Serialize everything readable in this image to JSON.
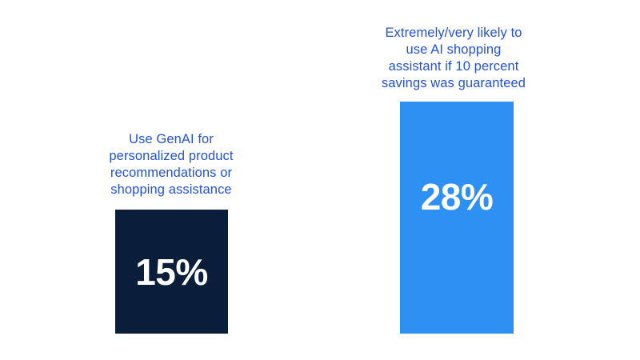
{
  "chart_data": {
    "type": "bar",
    "title": "",
    "xlabel": "",
    "ylabel": "",
    "categories": [
      "Use GenAI for personalized product recommendations or shopping assistance",
      "Extremely/very likely to use AI shopping assistant if 10 percent savings was guaranteed"
    ],
    "values": [
      15,
      28
    ],
    "value_labels": [
      "15%",
      "28%"
    ],
    "unit": "%",
    "bar_colors": [
      "#0a1d3b",
      "#2e90f2"
    ],
    "category_label_color": "#2352d9",
    "value_label_color": "#ffffff",
    "background_color": "#ffffff",
    "axes_visible": false,
    "gridlines": false,
    "legend": "none"
  },
  "bars": [
    {
      "label_lines": [
        "Use GenAI for",
        "personalized product",
        "recommendations or",
        "shopping assistance"
      ],
      "value_label": "15%"
    },
    {
      "label_lines": [
        "Extremely/very likely to",
        "use AI shopping",
        "assistant if 10 percent",
        "savings was guaranteed"
      ],
      "value_label": "28%"
    }
  ]
}
